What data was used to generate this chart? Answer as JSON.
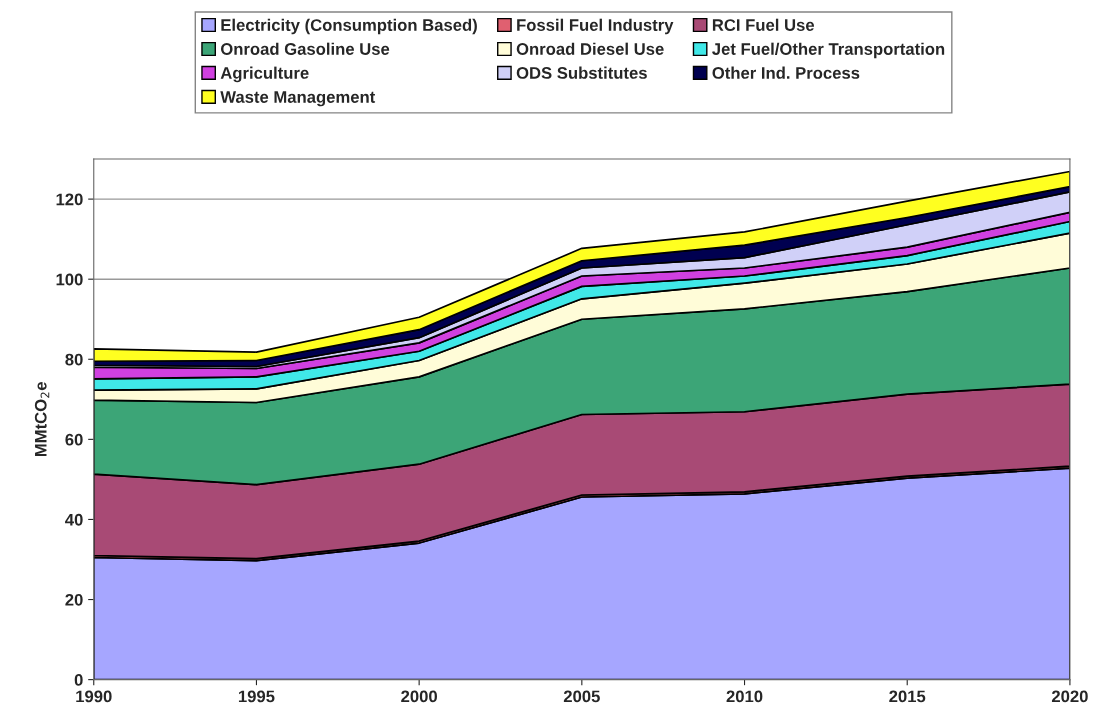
{
  "chart_data": {
    "type": "area",
    "stacked": true,
    "ylabel": "MMtCO$_{2}$e",
    "x": [
      1990,
      1995,
      2000,
      2005,
      2010,
      2015,
      2020
    ],
    "xlim": [
      1990,
      2020
    ],
    "xticks": [
      1990,
      1995,
      2000,
      2005,
      2010,
      2015,
      2020
    ],
    "ylim": [
      0,
      130
    ],
    "yticks": [
      0,
      20,
      40,
      60,
      80,
      100,
      120
    ],
    "grid": "y",
    "legend": "top",
    "series": [
      {
        "name": "Electricity (Consumption Based)",
        "color": "#a6a6ff",
        "values": [
          30.5,
          29.7,
          34.1,
          45.6,
          46.4,
          50.3,
          52.8
        ]
      },
      {
        "name": "Fossil Fuel Industry",
        "color": "#e06070",
        "values": [
          0.5,
          0.5,
          0.5,
          0.5,
          0.5,
          0.5,
          0.5
        ]
      },
      {
        "name": "RCI Fuel Use",
        "color": "#a84a75",
        "values": [
          20.3,
          18.5,
          19.2,
          20.1,
          20.0,
          20.5,
          20.5
        ]
      },
      {
        "name": "Onroad Gasoline Use",
        "color": "#3ca577",
        "values": [
          18.5,
          20.5,
          21.8,
          23.8,
          25.7,
          25.6,
          29.0
        ]
      },
      {
        "name": "Onroad Diesel Use",
        "color": "#fffcd8",
        "values": [
          2.5,
          3.4,
          4.1,
          5.1,
          6.4,
          6.9,
          8.7
        ]
      },
      {
        "name": "Jet Fuel/Other Transportation",
        "color": "#40e8e8",
        "values": [
          2.8,
          3.0,
          2.3,
          3.1,
          1.8,
          2.1,
          2.9
        ]
      },
      {
        "name": "Agriculture",
        "color": "#d040e0",
        "values": [
          2.9,
          2.1,
          2.1,
          2.6,
          2.0,
          2.1,
          2.3
        ]
      },
      {
        "name": "ODS Substitutes",
        "color": "#d0d0f8",
        "values": [
          0.5,
          0.5,
          1.3,
          2.0,
          2.6,
          5.6,
          5.1
        ]
      },
      {
        "name": "Other Ind. Process",
        "color": "#000050",
        "values": [
          1.0,
          1.5,
          2.0,
          1.8,
          3.1,
          1.8,
          1.3
        ]
      },
      {
        "name": "Waste Management",
        "color": "#ffff20",
        "values": [
          3.1,
          2.1,
          3.1,
          3.1,
          3.3,
          4.1,
          3.8
        ]
      }
    ]
  }
}
